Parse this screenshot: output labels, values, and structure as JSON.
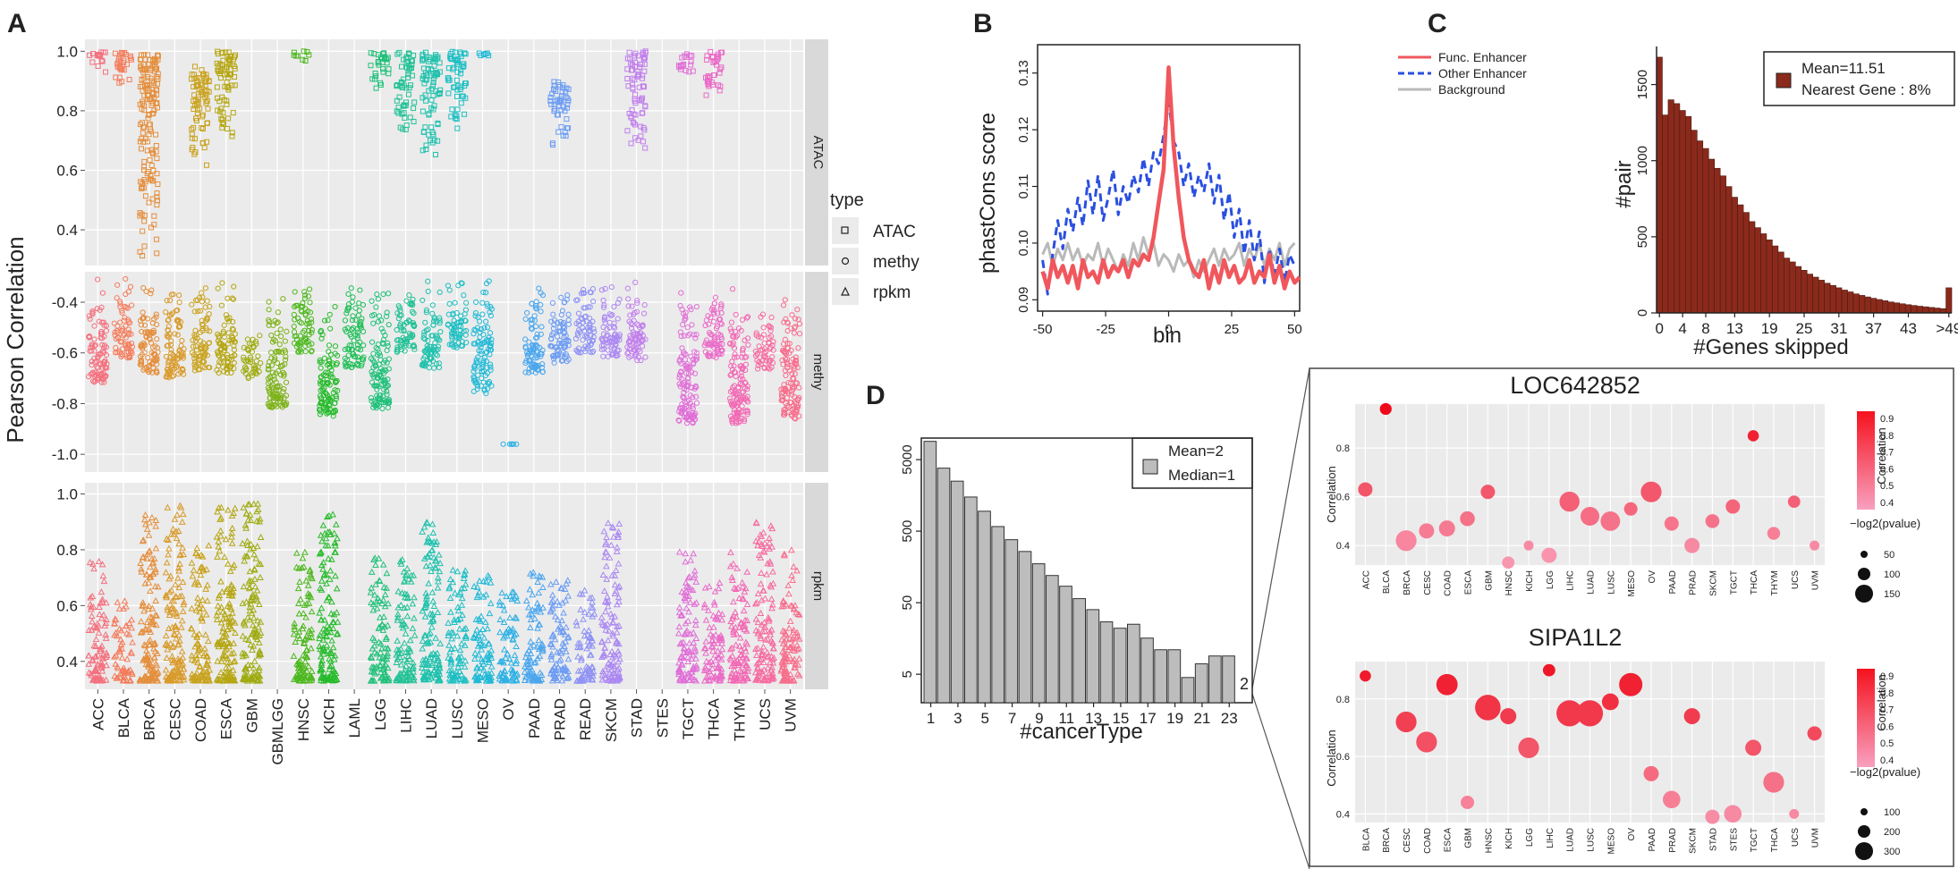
{
  "panel_letters": {
    "a": "A",
    "b": "B",
    "c": "C",
    "d": "D"
  },
  "chart_data": [
    {
      "panel": "A",
      "type": "scatter",
      "ylabel": "Pearson Correlation",
      "legend": {
        "title": "type",
        "items": [
          "ATAC",
          "methy",
          "rpkm"
        ]
      },
      "categories": [
        "ACC",
        "BLCA",
        "BRCA",
        "CESC",
        "COAD",
        "ESCA",
        "GBM",
        "GBMLGG",
        "HNSC",
        "KICH",
        "LAML",
        "LGG",
        "LIHC",
        "LUAD",
        "LUSC",
        "MESO",
        "OV",
        "PAAD",
        "PRAD",
        "READ",
        "SKCM",
        "STAD",
        "STES",
        "TGCT",
        "THCA",
        "THYM",
        "UCS",
        "UVM"
      ],
      "colors": [
        "#f4707e",
        "#f37c5c",
        "#e48e3c",
        "#d89a2a",
        "#c9a21e",
        "#b5a612",
        "#9fab12",
        "#7eb21a",
        "#4db81e",
        "#27bb2c",
        "#1ebe56",
        "#21c07a",
        "#22c196",
        "#1fc1ad",
        "#1ebfc3",
        "#20b9d6",
        "#2fb1e4",
        "#4aa6ee",
        "#6c9cf3",
        "#8f92f4",
        "#ab88f2",
        "#c17fec",
        "#d276e3",
        "#e06fd7",
        "#ea6ac7",
        "#f268b3",
        "#f66b9f",
        "#f76e8c"
      ],
      "facets": [
        {
          "label": "ATAC",
          "yticks": [
            1.0,
            0.8,
            0.6,
            0.4
          ],
          "ytick_labels": [
            "1.0",
            "0.8",
            "0.6",
            "0.4"
          ],
          "ylim": [
            0.28,
            1.04
          ],
          "ranges": {
            "ACC": [
              0.93,
              1.0
            ],
            "BLCA": [
              0.87,
              1.0
            ],
            "BRCA": [
              0.3,
              0.99
            ],
            "COAD": [
              0.61,
              0.95
            ],
            "ESCA": [
              0.69,
              1.0
            ],
            "HNSC": [
              0.96,
              1.0
            ],
            "LGG": [
              0.87,
              1.0
            ],
            "LIHC": [
              0.73,
              1.0
            ],
            "LUAD": [
              0.65,
              1.0
            ],
            "LUSC": [
              0.74,
              1.0
            ],
            "MESO": [
              0.98,
              1.0
            ],
            "PRAD": [
              0.67,
              0.9
            ],
            "STAD": [
              0.66,
              1.0
            ],
            "TGCT": [
              0.92,
              1.0
            ],
            "THCA": [
              0.83,
              1.0
            ]
          }
        },
        {
          "label": "methy",
          "yticks": [
            -0.4,
            -0.6,
            -0.8,
            -1.0
          ],
          "ytick_labels": [
            "-0.4",
            "-0.6",
            "-0.8",
            "-1.0"
          ],
          "ylim": [
            -1.07,
            -0.28
          ],
          "ranges": {
            "ACC": [
              -0.72,
              -0.3
            ],
            "BLCA": [
              -0.62,
              -0.3
            ],
            "BRCA": [
              -0.68,
              -0.3
            ],
            "CESC": [
              -0.7,
              -0.3
            ],
            "COAD": [
              -0.67,
              -0.3
            ],
            "ESCA": [
              -0.68,
              -0.3
            ],
            "GBM": [
              -0.7,
              -0.5
            ],
            "GBMLGG": [
              -0.82,
              -0.3
            ],
            "HNSC": [
              -0.6,
              -0.3
            ],
            "KICH": [
              -0.85,
              -0.38
            ],
            "LAML": [
              -0.66,
              -0.3
            ],
            "LGG": [
              -0.82,
              -0.3
            ],
            "LIHC": [
              -0.6,
              -0.3
            ],
            "LUAD": [
              -0.66,
              -0.3
            ],
            "LUSC": [
              -0.58,
              -0.3
            ],
            "MESO": [
              -0.76,
              -0.3
            ],
            "OV": [
              -0.96,
              -0.96
            ],
            "PAAD": [
              -0.68,
              -0.3
            ],
            "PRAD": [
              -0.64,
              -0.3
            ],
            "READ": [
              -0.6,
              -0.3
            ],
            "SKCM": [
              -0.62,
              -0.3
            ],
            "STAD": [
              -0.63,
              -0.3
            ],
            "TGCT": [
              -0.88,
              -0.3
            ],
            "THCA": [
              -0.62,
              -0.3
            ],
            "THYM": [
              -0.88,
              -0.3
            ],
            "UCS": [
              -0.67,
              -0.42
            ],
            "UVM": [
              -0.86,
              -0.3
            ]
          }
        },
        {
          "label": "rpkm",
          "yticks": [
            1.0,
            0.8,
            0.6,
            0.4
          ],
          "ytick_labels": [
            "1.0",
            "0.8",
            "0.6",
            "0.4"
          ],
          "ylim": [
            0.3,
            1.04
          ],
          "ranges": {
            "ACC": [
              0.33,
              0.76
            ],
            "BLCA": [
              0.33,
              0.62
            ],
            "BRCA": [
              0.33,
              0.96
            ],
            "CESC": [
              0.33,
              0.96
            ],
            "COAD": [
              0.33,
              0.82
            ],
            "ESCA": [
              0.33,
              0.96
            ],
            "GBM": [
              0.33,
              0.97
            ],
            "HNSC": [
              0.33,
              0.8
            ],
            "KICH": [
              0.33,
              0.93
            ],
            "LGG": [
              0.33,
              0.78
            ],
            "LIHC": [
              0.33,
              0.77
            ],
            "LUAD": [
              0.33,
              0.9
            ],
            "LUSC": [
              0.33,
              0.73
            ],
            "MESO": [
              0.33,
              0.72
            ],
            "OV": [
              0.33,
              0.68
            ],
            "PAAD": [
              0.33,
              0.72
            ],
            "PRAD": [
              0.33,
              0.72
            ],
            "READ": [
              0.33,
              0.66
            ],
            "SKCM": [
              0.33,
              0.9
            ],
            "TGCT": [
              0.33,
              0.82
            ],
            "THCA": [
              0.33,
              0.7
            ],
            "THYM": [
              0.33,
              0.8
            ],
            "UCS": [
              0.33,
              0.9
            ],
            "UVM": [
              0.33,
              0.8
            ]
          }
        }
      ]
    },
    {
      "panel": "B",
      "type": "line",
      "xlabel": "bin",
      "ylabel": "phastCons score",
      "xlim": [
        -52,
        52
      ],
      "ylim": [
        0.088,
        0.135
      ],
      "xticks": [
        -50,
        -25,
        0,
        25,
        50
      ],
      "xtick_labels": [
        "-50",
        "-25",
        "0",
        "25",
        "50"
      ],
      "yticks": [
        0.09,
        0.1,
        0.11,
        0.12,
        0.13
      ],
      "ytick_labels": [
        "0.09",
        "0.10",
        "0.11",
        "0.12",
        "0.13"
      ],
      "series": [
        {
          "name": "Func. Enhancer",
          "color": "#f0575c",
          "dash": "solid",
          "x": [
            -50,
            -48,
            -46,
            -44,
            -42,
            -40,
            -38,
            -36,
            -34,
            -32,
            -30,
            -28,
            -26,
            -24,
            -22,
            -20,
            -18,
            -16,
            -14,
            -12,
            -10,
            -8,
            -6,
            -4,
            -2,
            0,
            2,
            4,
            6,
            8,
            10,
            12,
            14,
            16,
            18,
            20,
            22,
            24,
            26,
            28,
            30,
            32,
            34,
            36,
            38,
            40,
            42,
            44,
            46,
            48,
            50,
            52
          ],
          "y": [
            0.095,
            0.092,
            0.097,
            0.094,
            0.096,
            0.093,
            0.096,
            0.092,
            0.097,
            0.094,
            0.095,
            0.093,
            0.097,
            0.094,
            0.096,
            0.095,
            0.097,
            0.094,
            0.097,
            0.096,
            0.098,
            0.097,
            0.101,
            0.107,
            0.113,
            0.131,
            0.117,
            0.108,
            0.101,
            0.097,
            0.095,
            0.094,
            0.097,
            0.092,
            0.096,
            0.093,
            0.097,
            0.094,
            0.096,
            0.093,
            0.094,
            0.097,
            0.093,
            0.095,
            0.094,
            0.098,
            0.093,
            0.096,
            0.092,
            0.095,
            0.093,
            0.094
          ]
        },
        {
          "name": "Other Enhancer",
          "color": "#2a4fe0",
          "dash": "dashed",
          "x": [
            -50,
            -48,
            -46,
            -44,
            -42,
            -40,
            -38,
            -36,
            -34,
            -32,
            -30,
            -28,
            -26,
            -24,
            -22,
            -20,
            -18,
            -16,
            -14,
            -12,
            -10,
            -8,
            -6,
            -4,
            -2,
            0,
            2,
            4,
            6,
            8,
            10,
            12,
            14,
            16,
            18,
            20,
            22,
            24,
            26,
            28,
            30,
            32,
            34,
            36,
            38,
            40,
            42,
            44,
            46,
            48,
            50
          ],
          "y": [
            0.097,
            0.091,
            0.098,
            0.104,
            0.099,
            0.106,
            0.102,
            0.108,
            0.103,
            0.111,
            0.105,
            0.112,
            0.104,
            0.108,
            0.113,
            0.105,
            0.11,
            0.107,
            0.112,
            0.109,
            0.115,
            0.11,
            0.116,
            0.114,
            0.119,
            0.125,
            0.118,
            0.116,
            0.11,
            0.114,
            0.108,
            0.112,
            0.109,
            0.114,
            0.107,
            0.112,
            0.104,
            0.109,
            0.101,
            0.106,
            0.098,
            0.104,
            0.097,
            0.102,
            0.093,
            0.099,
            0.094,
            0.099,
            0.093,
            0.098,
            0.096
          ]
        },
        {
          "name": "Background",
          "color": "#b9b9b9",
          "dash": "solid",
          "x": [
            -50,
            -48,
            -46,
            -44,
            -42,
            -40,
            -38,
            -36,
            -34,
            -32,
            -30,
            -28,
            -26,
            -24,
            -22,
            -20,
            -18,
            -16,
            -14,
            -12,
            -10,
            -8,
            -6,
            -4,
            -2,
            0,
            2,
            4,
            6,
            8,
            10,
            12,
            14,
            16,
            18,
            20,
            22,
            24,
            26,
            28,
            30,
            32,
            34,
            36,
            38,
            40,
            42,
            44,
            46,
            48,
            50
          ],
          "y": [
            0.098,
            0.1,
            0.096,
            0.099,
            0.097,
            0.1,
            0.097,
            0.099,
            0.096,
            0.098,
            0.097,
            0.1,
            0.096,
            0.099,
            0.097,
            0.095,
            0.098,
            0.096,
            0.1,
            0.097,
            0.101,
            0.098,
            0.1,
            0.096,
            0.098,
            0.097,
            0.095,
            0.098,
            0.096,
            0.097,
            0.094,
            0.097,
            0.095,
            0.097,
            0.099,
            0.096,
            0.099,
            0.097,
            0.098,
            0.1,
            0.096,
            0.099,
            0.097,
            0.1,
            0.096,
            0.099,
            0.097,
            0.1,
            0.096,
            0.099,
            0.1
          ]
        }
      ]
    },
    {
      "panel": "C",
      "type": "bar",
      "xlabel": "#Genes skipped",
      "ylabel": "#pair",
      "legend_lines": [
        "Mean=11.51",
        "Nearest Gene : 8%"
      ],
      "bar_color": "#8b2a1c",
      "ylim": [
        0,
        1750
      ],
      "yticks": [
        0,
        500,
        1000,
        1500
      ],
      "ytick_labels": [
        "0",
        "500",
        "1000",
        "1500"
      ],
      "xtick_labels": [
        "0",
        "4",
        "8",
        "13",
        "19",
        "25",
        "31",
        "37",
        "43",
        ">49"
      ],
      "xtick_indices": [
        0,
        4,
        8,
        13,
        19,
        25,
        31,
        37,
        43,
        50
      ],
      "values": [
        1680,
        1300,
        1400,
        1375,
        1330,
        1290,
        1200,
        1130,
        1080,
        1010,
        950,
        900,
        830,
        760,
        710,
        660,
        600,
        560,
        520,
        480,
        440,
        400,
        360,
        335,
        305,
        280,
        255,
        235,
        215,
        195,
        180,
        165,
        150,
        138,
        125,
        115,
        105,
        96,
        88,
        80,
        72,
        66,
        60,
        54,
        49,
        44,
        40,
        36,
        32,
        28,
        165
      ]
    },
    {
      "panel": "D",
      "type": "bar",
      "xlabel": "#cancerType",
      "legend_lines": [
        "Mean=2",
        "Median=1"
      ],
      "bar_color": "#bdbdbd",
      "yscale": "log",
      "ylim": [
        2,
        10000
      ],
      "yticks": [
        5,
        50,
        500,
        5000
      ],
      "ytick_labels": [
        "5",
        "50",
        "500",
        "5000"
      ],
      "xtick_labels": [
        "1",
        "3",
        "5",
        "7",
        "9",
        "11",
        "13",
        "15",
        "17",
        "19",
        "21",
        "23"
      ],
      "bar_label": "2",
      "values": [
        9000,
        3800,
        2500,
        1500,
        950,
        580,
        380,
        260,
        175,
        120,
        85,
        57,
        40,
        27,
        22,
        25,
        16,
        11,
        11,
        4.5,
        7,
        9,
        9,
        2
      ]
    },
    {
      "panel": "D1",
      "type": "scatter",
      "title": "LOC642852",
      "ylabel": "Correlation",
      "ylim": [
        0.32,
        0.98
      ],
      "yticks": [
        0.4,
        0.6,
        0.8
      ],
      "ytick_labels": [
        "0.4",
        "0.6",
        "0.8"
      ],
      "colorbar": {
        "title": "Correlation",
        "ticks": [
          "0.9",
          "0.8",
          "0.7",
          "0.6",
          "0.5",
          "0.4"
        ]
      },
      "size_legend": {
        "title": "−log2(pvalue)",
        "items": [
          "50",
          "100",
          "150"
        ]
      },
      "categories": [
        "ACC",
        "BLCA",
        "BRCA",
        "CESC",
        "COAD",
        "ESCA",
        "GBM",
        "HNSC",
        "KICH",
        "LGG",
        "LIHC",
        "LUAD",
        "LUSC",
        "MESO",
        "OV",
        "PAAD",
        "PRAD",
        "SKCM",
        "TGCT",
        "THCA",
        "THYM",
        "UCS",
        "UVM"
      ],
      "values": [
        0.63,
        0.96,
        0.42,
        0.46,
        0.47,
        0.51,
        0.62,
        0.33,
        0.4,
        0.36,
        0.58,
        0.52,
        0.5,
        0.55,
        0.62,
        0.49,
        0.4,
        0.5,
        0.56,
        0.85,
        0.45,
        0.58,
        0.4
      ],
      "sizes": [
        60,
        35,
        150,
        70,
        80,
        65,
        60,
        40,
        20,
        70,
        140,
        120,
        130,
        50,
        150,
        60,
        70,
        55,
        60,
        30,
        45,
        40,
        20
      ]
    },
    {
      "panel": "D2",
      "type": "scatter",
      "title": "SIPA1L2",
      "ylabel": "Correlation",
      "ylim": [
        0.37,
        0.93
      ],
      "yticks": [
        0.4,
        0.6,
        0.8
      ],
      "ytick_labels": [
        "0.4",
        "0.6",
        "0.8"
      ],
      "colorbar": {
        "title": "Correlation",
        "ticks": [
          "0.9",
          "0.8",
          "0.7",
          "0.6",
          "0.5",
          "0.4"
        ]
      },
      "size_legend": {
        "title": "−log2(pvalue)",
        "items": [
          "100",
          "200",
          "300"
        ]
      },
      "categories": [
        "BLCA",
        "BRCA",
        "CESC",
        "COAD",
        "ESCA",
        "GBM",
        "HNSC",
        "KICH",
        "LGG",
        "LIHC",
        "LUAD",
        "LUSC",
        "MESO",
        "OV",
        "PAAD",
        "PRAD",
        "SKCM",
        "STAD",
        "STES",
        "TGCT",
        "THCA",
        "UCS",
        "UVM"
      ],
      "values": [
        0.88,
        null,
        0.72,
        0.65,
        0.85,
        0.44,
        0.77,
        0.74,
        0.63,
        0.9,
        0.75,
        0.75,
        0.79,
        0.85,
        0.54,
        0.45,
        0.74,
        0.39,
        0.4,
        0.63,
        0.51,
        0.4,
        0.68
      ],
      "sizes": [
        30,
        null,
        150,
        150,
        160,
        50,
        250,
        80,
        150,
        40,
        260,
        260,
        90,
        200,
        70,
        100,
        80,
        60,
        100,
        80,
        150,
        20,
        60
      ]
    }
  ]
}
